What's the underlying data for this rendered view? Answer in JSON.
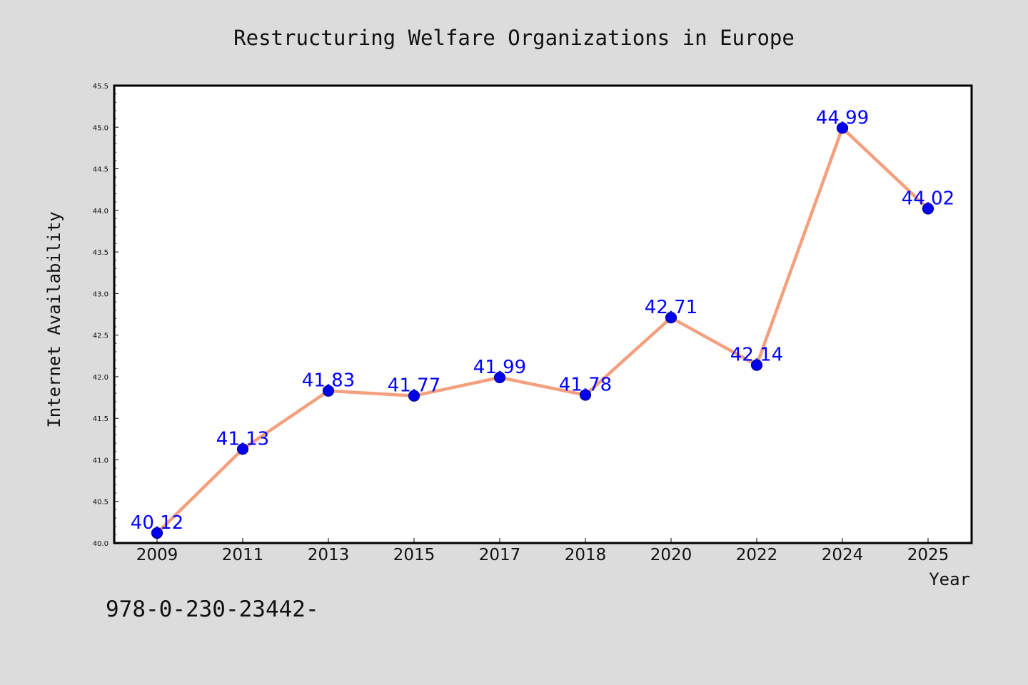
{
  "chart_data": {
    "type": "line",
    "title": "Restructuring Welfare Organizations in Europe",
    "xlabel": "Year",
    "ylabel": "Internet Availability",
    "categories": [
      "2009",
      "2011",
      "2013",
      "2015",
      "2017",
      "2018",
      "2020",
      "2022",
      "2024",
      "2025"
    ],
    "series": [
      {
        "values": [
          40.12,
          41.13,
          41.83,
          41.77,
          41.99,
          41.78,
          42.71,
          42.14,
          44.99,
          44.02
        ],
        "labels": [
          "40.12",
          "41.13",
          "41.83",
          "41.77",
          "41.99",
          "41.78",
          "42.71",
          "42.14",
          "44.99",
          "44.02"
        ]
      }
    ],
    "ylim": [
      40.0,
      45.5
    ],
    "yticks": [
      "40.0",
      "40.5",
      "41.0",
      "41.5",
      "42.0",
      "42.5",
      "43.0",
      "43.5",
      "44.0",
      "44.5",
      "45.0",
      "45.5"
    ],
    "grid": false,
    "legend": "none",
    "colors": {
      "line": "#f4a07e",
      "marker_fill": "#0000ee",
      "marker_edge": "#00008b",
      "data_label": "#0000ff",
      "background": "#dcdcdc",
      "plot_background": "#ffffff"
    }
  },
  "footer": {
    "text": "978-0-230-23442-"
  }
}
